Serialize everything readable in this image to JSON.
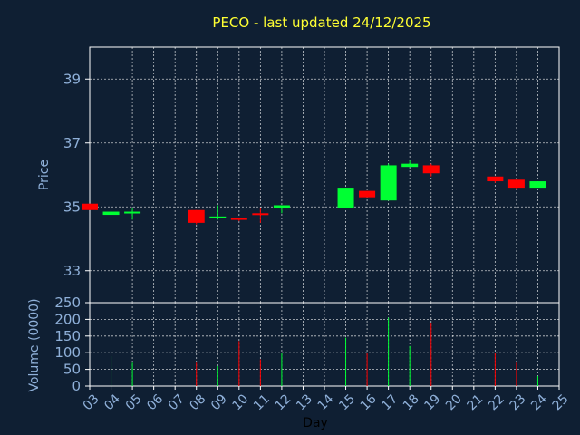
{
  "chart_data": [
    {
      "type": "candlestick",
      "title": "PECO - last updated 24/12/2025",
      "ylabel": "Price",
      "ylim": [
        32,
        40
      ],
      "yticks": [
        33,
        35,
        37,
        39
      ],
      "grid": true,
      "colors": {
        "up": "#00ff33",
        "down": "#ff0000",
        "background": "#0f1f33",
        "title": "#ffff33",
        "axis_text": "#8fb0d9",
        "grid": "#ffffff"
      },
      "x": [
        "03",
        "04",
        "05",
        "06",
        "07",
        "08",
        "09",
        "10",
        "11",
        "12",
        "13",
        "14",
        "15",
        "16",
        "17",
        "18",
        "19",
        "20",
        "21",
        "22",
        "23",
        "24",
        "25"
      ],
      "candles": [
        {
          "day": "03",
          "open": 35.1,
          "high": 35.1,
          "low": 34.9,
          "close": 34.9
        },
        {
          "day": "04",
          "open": 34.75,
          "high": 34.85,
          "low": 34.75,
          "close": 34.85
        },
        {
          "day": "05",
          "open": 34.8,
          "high": 34.95,
          "low": 34.6,
          "close": 34.85
        },
        {
          "day": "08",
          "open": 34.9,
          "high": 34.9,
          "low": 34.45,
          "close": 34.5
        },
        {
          "day": "09",
          "open": 34.65,
          "high": 35.05,
          "low": 34.6,
          "close": 34.7
        },
        {
          "day": "10",
          "open": 34.65,
          "high": 34.65,
          "low": 34.55,
          "close": 34.6
        },
        {
          "day": "11",
          "open": 34.8,
          "high": 34.95,
          "low": 34.5,
          "close": 34.75
        },
        {
          "day": "12",
          "open": 34.95,
          "high": 35.05,
          "low": 34.8,
          "close": 35.05
        },
        {
          "day": "15",
          "open": 34.95,
          "high": 35.6,
          "low": 34.95,
          "close": 35.6
        },
        {
          "day": "16",
          "open": 35.5,
          "high": 35.5,
          "low": 35.3,
          "close": 35.3
        },
        {
          "day": "17",
          "open": 35.2,
          "high": 36.35,
          "low": 35.2,
          "close": 36.3
        },
        {
          "day": "18",
          "open": 36.25,
          "high": 36.45,
          "low": 36.25,
          "close": 36.35
        },
        {
          "day": "19",
          "open": 36.3,
          "high": 36.35,
          "low": 35.95,
          "close": 36.05
        },
        {
          "day": "22",
          "open": 35.95,
          "high": 35.95,
          "low": 35.75,
          "close": 35.8
        },
        {
          "day": "23",
          "open": 35.85,
          "high": 35.85,
          "low": 35.55,
          "close": 35.6
        },
        {
          "day": "24",
          "open": 35.6,
          "high": 35.8,
          "low": 35.6,
          "close": 35.8
        }
      ]
    },
    {
      "type": "bar",
      "ylabel": "Volume (0000)",
      "xlabel": "Day",
      "ylim": [
        0,
        250
      ],
      "yticks": [
        0,
        50,
        100,
        150,
        200,
        250
      ],
      "grid": true,
      "categories": [
        "03",
        "04",
        "05",
        "06",
        "07",
        "08",
        "09",
        "10",
        "11",
        "12",
        "13",
        "14",
        "15",
        "16",
        "17",
        "18",
        "19",
        "20",
        "21",
        "22",
        "23",
        "24",
        "25"
      ],
      "bars": [
        {
          "day": "04",
          "value": 90,
          "direction": "up"
        },
        {
          "day": "05",
          "value": 70,
          "direction": "up"
        },
        {
          "day": "08",
          "value": 70,
          "direction": "down"
        },
        {
          "day": "09",
          "value": 60,
          "direction": "up"
        },
        {
          "day": "10",
          "value": 135,
          "direction": "down"
        },
        {
          "day": "11",
          "value": 80,
          "direction": "down"
        },
        {
          "day": "12",
          "value": 100,
          "direction": "up"
        },
        {
          "day": "15",
          "value": 145,
          "direction": "up"
        },
        {
          "day": "16",
          "value": 100,
          "direction": "down"
        },
        {
          "day": "17",
          "value": 205,
          "direction": "up"
        },
        {
          "day": "18",
          "value": 120,
          "direction": "up"
        },
        {
          "day": "19",
          "value": 190,
          "direction": "down"
        },
        {
          "day": "22",
          "value": 100,
          "direction": "down"
        },
        {
          "day": "23",
          "value": 70,
          "direction": "down"
        },
        {
          "day": "24",
          "value": 30,
          "direction": "up"
        }
      ]
    }
  ]
}
